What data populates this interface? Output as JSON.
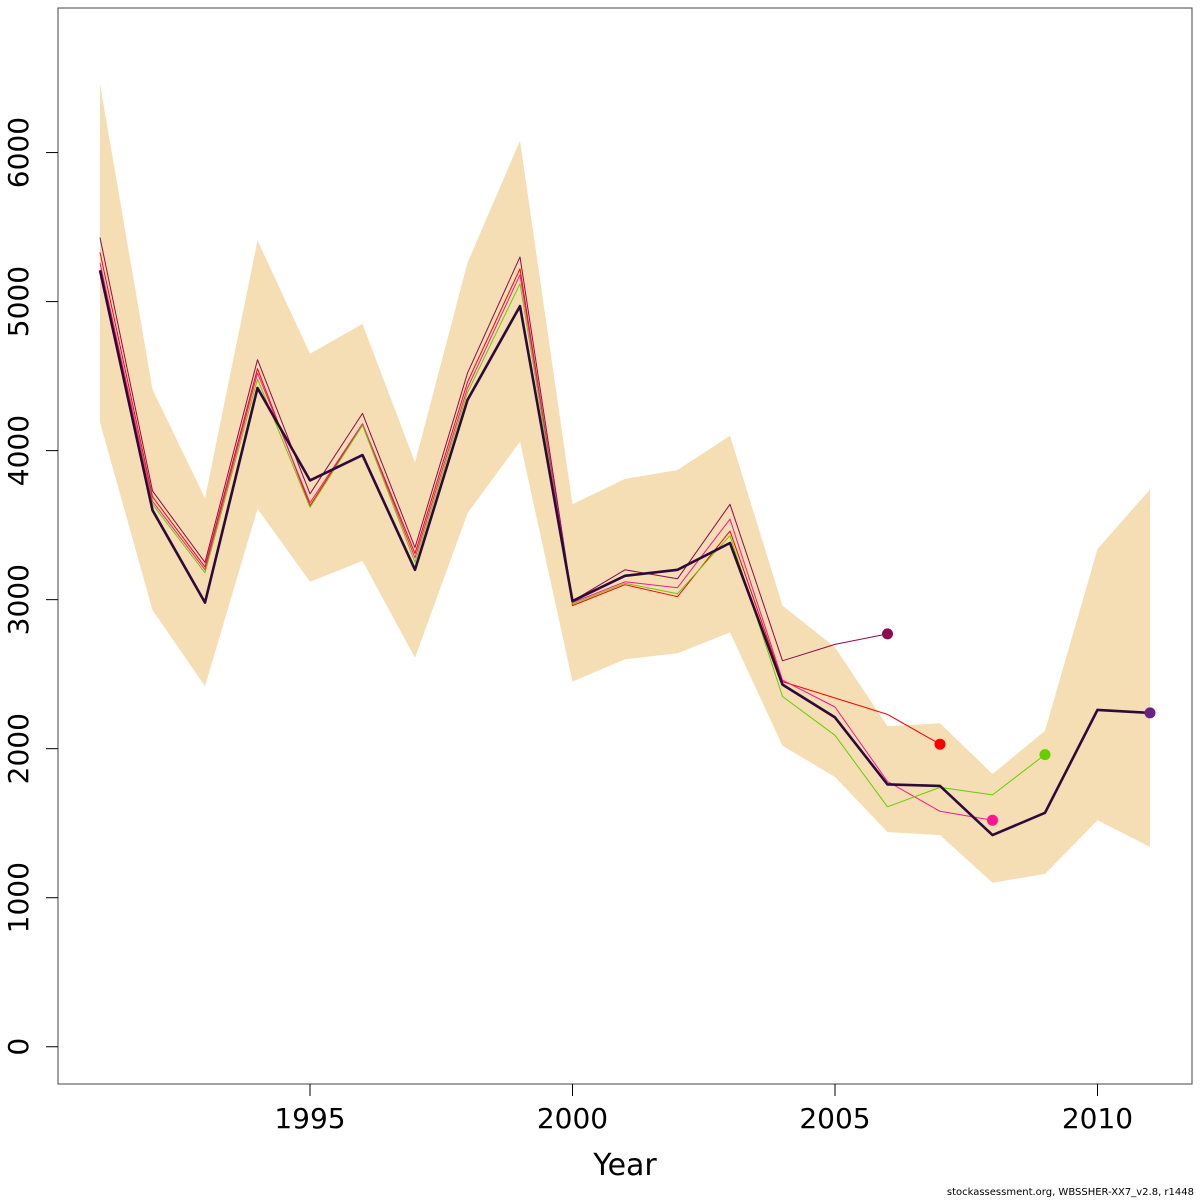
{
  "chart_data": {
    "type": "line",
    "title": "",
    "xlabel": "Year",
    "ylabel": "",
    "xlim": [
      1990.2,
      2011.8
    ],
    "ylim": [
      -250,
      6970
    ],
    "x_ticks": [
      1995,
      2000,
      2005,
      2010
    ],
    "y_ticks": [
      0,
      1000,
      2000,
      3000,
      4000,
      5000,
      6000
    ],
    "grid": false,
    "legend": "none",
    "confidence_band": {
      "color": "#f5deb3",
      "x": [
        1991,
        1992,
        1993,
        1994,
        1995,
        1996,
        1997,
        1998,
        1999,
        2000,
        2001,
        2002,
        2003,
        2004,
        2005,
        2006,
        2007,
        2008,
        2009,
        2010,
        2011
      ],
      "upper": [
        6460,
        4410,
        3680,
        5410,
        4650,
        4850,
        3920,
        5260,
        6080,
        3640,
        3810,
        3870,
        4100,
        2960,
        2680,
        2150,
        2170,
        1830,
        2120,
        3340,
        3740
      ],
      "lower": [
        4190,
        2930,
        2420,
        3610,
        3120,
        3260,
        2610,
        3580,
        4060,
        2450,
        2600,
        2640,
        2780,
        2020,
        1810,
        1440,
        1420,
        1100,
        1160,
        1520,
        1340
      ]
    },
    "series": [
      {
        "color": "#8b0a50",
        "width": 1,
        "endpoint": true,
        "x": [
          1991,
          1992,
          1993,
          1994,
          1995,
          1996,
          1997,
          1998,
          1999,
          2000,
          2001,
          2002,
          2003,
          2004,
          2005,
          2006
        ],
        "values": [
          5430,
          3730,
          3250,
          4610,
          3710,
          4250,
          3350,
          4520,
          5300,
          2990,
          3200,
          3140,
          3640,
          2590,
          2700,
          2770
        ]
      },
      {
        "color": "#ff0000",
        "width": 1,
        "endpoint": true,
        "x": [
          1991,
          1992,
          1993,
          1994,
          1995,
          1996,
          1997,
          1998,
          1999,
          2000,
          2001,
          2002,
          2003,
          2004,
          2005,
          2006,
          2007
        ],
        "values": [
          5330,
          3690,
          3220,
          4550,
          3630,
          4180,
          3310,
          4460,
          5220,
          2960,
          3100,
          3020,
          3460,
          2450,
          2340,
          2230,
          2030
        ]
      },
      {
        "color": "#ff1493",
        "width": 1,
        "endpoint": true,
        "x": [
          1991,
          1992,
          1993,
          1994,
          1995,
          1996,
          1997,
          1998,
          1999,
          2000,
          2001,
          2002,
          2003,
          2004,
          2005,
          2006,
          2007,
          2008
        ],
        "values": [
          5260,
          3660,
          3200,
          4520,
          3650,
          4180,
          3280,
          4420,
          5180,
          2980,
          3120,
          3080,
          3540,
          2460,
          2280,
          1780,
          1580,
          1520
        ]
      },
      {
        "color": "#66cd00",
        "width": 1,
        "endpoint": true,
        "x": [
          1991,
          1992,
          1993,
          1994,
          1995,
          1996,
          1997,
          1998,
          1999,
          2000,
          2001,
          2002,
          2003,
          2004,
          2005,
          2006,
          2007,
          2008,
          2009
        ],
        "values": [
          5210,
          3640,
          3180,
          4480,
          3620,
          4170,
          3250,
          4390,
          5120,
          2970,
          3110,
          3040,
          3430,
          2350,
          2090,
          1610,
          1740,
          1690,
          1960
        ]
      },
      {
        "color": "#2c0a3c",
        "width": 2.6,
        "endpoint": false,
        "x": [
          1991,
          1992,
          1993,
          1994,
          1995,
          1996,
          1997,
          1998,
          1999,
          2000,
          2001,
          2002,
          2003,
          2004,
          2005,
          2006,
          2007,
          2008,
          2009,
          2010,
          2011
        ],
        "values": [
          5210,
          3600,
          2980,
          4420,
          3800,
          3970,
          3200,
          4340,
          4970,
          2990,
          3160,
          3200,
          3380,
          2430,
          2210,
          1760,
          1750,
          1420,
          1570,
          2260,
          2240
        ]
      },
      {
        "color": "#68228b",
        "width": 0,
        "endpoint": true,
        "x": [
          2011
        ],
        "values": [
          2240
        ]
      }
    ]
  },
  "footer_text": "stockassessment.org, WBSSHER-XX7_v2.8, r1448"
}
